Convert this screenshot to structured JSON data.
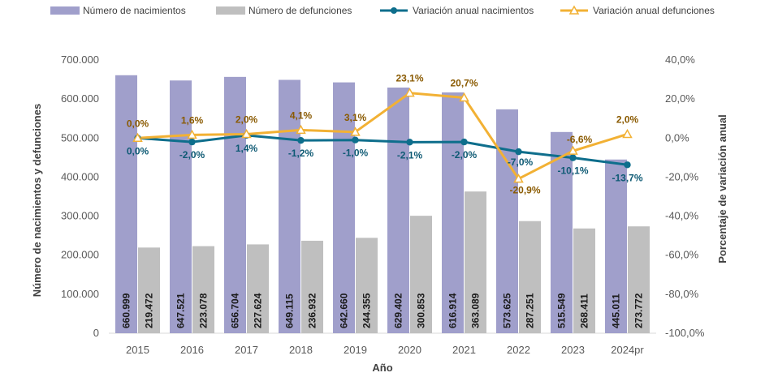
{
  "chart_data": {
    "type": "bar",
    "xlabel": "Año",
    "ylabel_left": "Número de nacimientos y defunciones",
    "ylabel_right": "Porcentaje de variación anual",
    "categories": [
      "2015",
      "2016",
      "2017",
      "2018",
      "2019",
      "2020",
      "2021",
      "2022",
      "2023",
      "2024pr"
    ],
    "left_axis": {
      "min": 0,
      "max": 700000,
      "ticks": [
        0,
        100000,
        200000,
        300000,
        400000,
        500000,
        600000,
        700000
      ],
      "tick_labels": [
        "0",
        "100.000",
        "200.000",
        "300.000",
        "400.000",
        "500.000",
        "600.000",
        "700.000"
      ]
    },
    "right_axis": {
      "min": -100,
      "max": 40,
      "ticks": [
        -100,
        -80,
        -60,
        -40,
        -20,
        0,
        20,
        40
      ],
      "tick_labels": [
        "-100,0%",
        "-80,0%",
        "-60,0%",
        "-40,0%",
        "-20,0%",
        "0,0%",
        "20,0%",
        "40,0%"
      ]
    },
    "series": [
      {
        "name": "Número de nacimientos",
        "kind": "bar",
        "axis": "left",
        "color": "#a09fcb",
        "values": [
          660999,
          647521,
          656704,
          649115,
          642660,
          629402,
          616914,
          573625,
          515549,
          445011
        ],
        "labels": [
          "660.999",
          "647.521",
          "656.704",
          "649.115",
          "642.660",
          "629.402",
          "616.914",
          "573.625",
          "515.549",
          "445.011"
        ]
      },
      {
        "name": "Número de defunciones",
        "kind": "bar",
        "axis": "left",
        "color": "#bfbfbf",
        "values": [
          219472,
          223078,
          227624,
          236932,
          244355,
          300853,
          363089,
          287251,
          268411,
          273772
        ],
        "labels": [
          "219.472",
          "223.078",
          "227.624",
          "236.932",
          "244.355",
          "300.853",
          "363.089",
          "287.251",
          "268.411",
          "273.772"
        ]
      },
      {
        "name": "Variación anual nacimientos",
        "kind": "line",
        "axis": "right",
        "color": "#0e6e8c",
        "values": [
          0.0,
          -2.0,
          1.4,
          -1.2,
          -1.0,
          -2.1,
          -2.0,
          -7.0,
          -10.1,
          -13.7
        ],
        "labels": [
          "0,0%",
          "-2,0%",
          "1,4%",
          "-1,2%",
          "-1,0%",
          "-2,1%",
          "-2,0%",
          "-7,0%",
          "-10,1%",
          "-13,7%"
        ]
      },
      {
        "name": "Variación anual defunciones",
        "kind": "line",
        "axis": "right",
        "color": "#f2b134",
        "values": [
          0.0,
          1.6,
          2.0,
          4.1,
          3.1,
          23.1,
          20.7,
          -20.9,
          -6.6,
          2.0
        ],
        "labels": [
          "0,0%",
          "1,6%",
          "2,0%",
          "4,1%",
          "3,1%",
          "23,1%",
          "20,7%",
          "-20,9%",
          "-6,6%",
          "2,0%"
        ]
      }
    ]
  }
}
